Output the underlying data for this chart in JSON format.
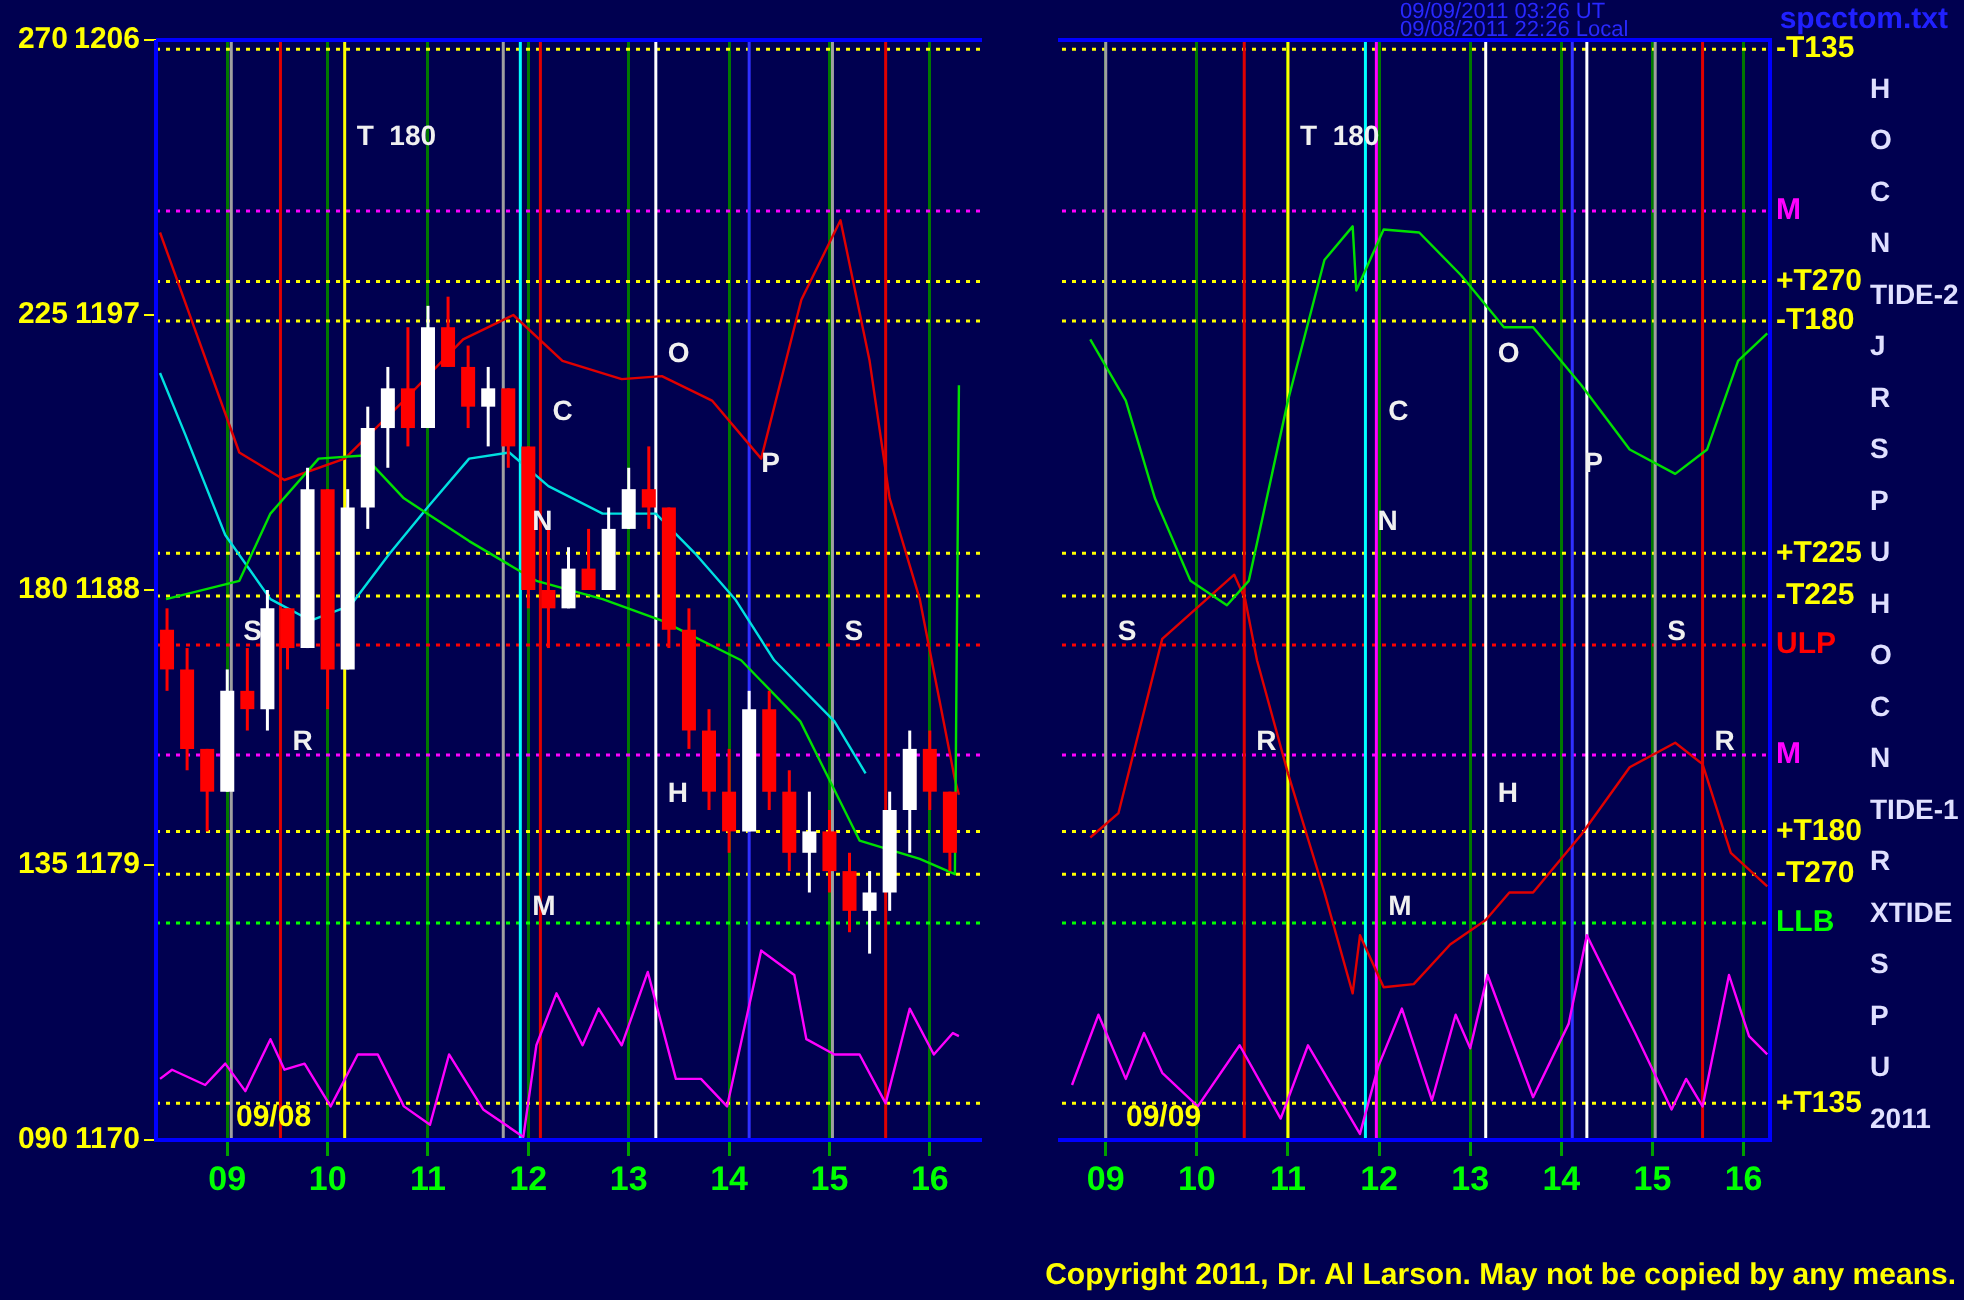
{
  "chart_data": [
    {
      "type": "candlestick",
      "x": [
        8.4,
        8.6,
        8.8,
        9.0,
        9.2,
        9.4,
        9.6,
        9.8,
        10.0,
        10.2,
        10.4,
        10.6,
        10.8,
        11.0,
        11.2,
        11.4,
        11.6,
        11.8,
        12.0,
        12.2,
        12.4,
        12.6,
        12.8,
        13.0,
        13.2,
        13.4,
        13.6,
        13.8,
        14.0,
        14.2,
        14.4,
        14.6,
        14.8,
        15.0,
        15.2,
        15.4,
        15.6,
        15.8,
        16.0,
        16.2
      ],
      "ohlc": [
        [
          1186.7,
          1187.4,
          1184.7,
          1185.4
        ],
        [
          1185.4,
          1186.1,
          1182.1,
          1182.8
        ],
        [
          1182.8,
          1182.8,
          1180.1,
          1181.4
        ],
        [
          1181.4,
          1185.4,
          1181.4,
          1184.7
        ],
        [
          1184.7,
          1186.1,
          1183.4,
          1184.1
        ],
        [
          1184.1,
          1188.0,
          1183.4,
          1187.4
        ],
        [
          1187.4,
          1187.4,
          1185.4,
          1186.1
        ],
        [
          1186.1,
          1192.0,
          1186.1,
          1191.3
        ],
        [
          1191.3,
          1191.3,
          1184.1,
          1185.4
        ],
        [
          1185.4,
          1191.3,
          1185.4,
          1190.7
        ],
        [
          1190.7,
          1194.0,
          1190.0,
          1193.3
        ],
        [
          1193.3,
          1195.3,
          1192.0,
          1194.6
        ],
        [
          1194.6,
          1196.6,
          1192.7,
          1193.3
        ],
        [
          1193.3,
          1197.3,
          1193.3,
          1196.6
        ],
        [
          1196.6,
          1197.6,
          1195.3,
          1195.3
        ],
        [
          1195.3,
          1196.0,
          1193.3,
          1194.0
        ],
        [
          1194.0,
          1195.3,
          1192.7,
          1194.6
        ],
        [
          1194.6,
          1194.6,
          1192.0,
          1192.7
        ],
        [
          1192.7,
          1192.7,
          1187.4,
          1188.0
        ],
        [
          1188.0,
          1190.0,
          1186.1,
          1187.4
        ],
        [
          1187.4,
          1189.4,
          1187.4,
          1188.7
        ],
        [
          1188.7,
          1190.0,
          1188.0,
          1188.0
        ],
        [
          1188.0,
          1190.7,
          1188.0,
          1190.0
        ],
        [
          1190.0,
          1192.0,
          1190.0,
          1191.3
        ],
        [
          1191.3,
          1192.7,
          1190.0,
          1190.7
        ],
        [
          1190.7,
          1190.7,
          1186.1,
          1186.7
        ],
        [
          1186.7,
          1187.4,
          1182.8,
          1183.4
        ],
        [
          1183.4,
          1184.1,
          1180.8,
          1181.4
        ],
        [
          1181.4,
          1182.8,
          1179.4,
          1180.1
        ],
        [
          1180.1,
          1184.7,
          1180.1,
          1184.1
        ],
        [
          1184.1,
          1184.7,
          1180.8,
          1181.4
        ],
        [
          1181.4,
          1182.1,
          1178.8,
          1179.4
        ],
        [
          1179.4,
          1181.4,
          1178.1,
          1180.1
        ],
        [
          1180.1,
          1180.8,
          1178.1,
          1178.8
        ],
        [
          1178.8,
          1179.4,
          1176.8,
          1177.5
        ],
        [
          1177.5,
          1178.8,
          1176.1,
          1178.1
        ],
        [
          1178.1,
          1181.4,
          1177.5,
          1180.8
        ],
        [
          1180.8,
          1183.4,
          1179.4,
          1182.8
        ],
        [
          1182.8,
          1183.4,
          1180.8,
          1181.4
        ],
        [
          1181.4,
          1181.4,
          1178.8,
          1179.4
        ]
      ],
      "series": [
        {
          "type": "line",
          "color": "#00e000",
          "x": [
            8.39,
            9.12,
            9.43,
            9.91,
            10.36,
            10.76,
            11.41,
            12.08,
            12.74,
            13.33,
            14.12,
            14.71,
            15.3,
            15.9,
            16.25,
            16.29
          ],
          "values": [
            1187.7,
            1188.3,
            1190.5,
            1192.3,
            1192.4,
            1191.0,
            1189.6,
            1188.3,
            1187.7,
            1187.0,
            1185.7,
            1183.7,
            1179.8,
            1179.2,
            1178.7,
            1194.7
          ]
        },
        {
          "type": "line",
          "color": "#e00000",
          "x": [
            8.33,
            9.12,
            9.57,
            10.17,
            10.76,
            11.35,
            11.85,
            12.34,
            12.93,
            13.33,
            13.83,
            14.32,
            14.72,
            15.11,
            15.4,
            15.6,
            15.9,
            16.25,
            16.29
          ],
          "values": [
            1199.7,
            1192.5,
            1191.6,
            1192.3,
            1194.2,
            1196.2,
            1197.0,
            1195.5,
            1194.9,
            1195.0,
            1194.2,
            1192.3,
            1197.5,
            1200.1,
            1195.5,
            1191.0,
            1187.7,
            1181.8,
            1181.3
          ]
        },
        {
          "type": "line",
          "color": "#ff00ff",
          "x": [
            8.33,
            8.45,
            8.78,
            8.98,
            9.18,
            9.43,
            9.57,
            9.77,
            10.03,
            10.3,
            10.5,
            10.76,
            11.02,
            11.21,
            11.55,
            11.95,
            12.08,
            12.28,
            12.54,
            12.7,
            12.93,
            13.19,
            13.47,
            13.72,
            13.98,
            14.32,
            14.65,
            14.77,
            15.05,
            15.3,
            15.56,
            15.8,
            16.04,
            16.23,
            16.29
          ],
          "values": [
            1172.0,
            1172.3,
            1171.8,
            1172.5,
            1171.6,
            1173.3,
            1172.3,
            1172.5,
            1171.1,
            1172.8,
            1172.8,
            1171.1,
            1170.5,
            1172.8,
            1171.0,
            1170.1,
            1173.1,
            1174.8,
            1173.1,
            1174.3,
            1173.1,
            1175.5,
            1172.0,
            1172.0,
            1171.1,
            1176.2,
            1175.4,
            1173.3,
            1172.8,
            1172.8,
            1171.2,
            1174.3,
            1172.8,
            1173.5,
            1173.4
          ]
        },
        {
          "type": "line",
          "color": "#00e0e0",
          "x": [
            8.33,
            8.58,
            8.98,
            9.43,
            9.83,
            10.23,
            10.62,
            11.02,
            11.41,
            11.81,
            12.2,
            12.74,
            13.27,
            13.66,
            14.06,
            14.45,
            15.05,
            15.36
          ],
          "values": [
            1195.1,
            1193.1,
            1189.8,
            1187.7,
            1187.0,
            1187.5,
            1189.2,
            1190.8,
            1192.3,
            1192.5,
            1191.4,
            1190.5,
            1190.5,
            1189.2,
            1187.7,
            1185.7,
            1183.7,
            1182.0
          ]
        }
      ],
      "marker": "none",
      "grid": "x",
      "xlim": [
        8.29,
        16.52
      ],
      "xticks": [
        {
          "value": 9,
          "label": "09"
        },
        {
          "value": 10,
          "label": "10"
        },
        {
          "value": 11,
          "label": "11"
        },
        {
          "value": 12,
          "label": "12"
        },
        {
          "value": 13,
          "label": "13"
        },
        {
          "value": 14,
          "label": "14"
        },
        {
          "value": 15,
          "label": "15"
        },
        {
          "value": 16,
          "label": "16"
        }
      ],
      "ylim": [
        1170,
        1206
      ],
      "yticks": [
        1170,
        1179,
        1188,
        1197,
        1206
      ],
      "y2lim": [
        90,
        270
      ],
      "y2ticks": [
        {
          "value": 90,
          "label": "090"
        },
        135,
        180,
        225,
        270
      ],
      "ref_lines": [
        {
          "axis": "y",
          "value": 1205.7,
          "color": "#ffff00",
          "line_style": "dotted"
        },
        {
          "axis": "y",
          "value": 1200.4,
          "color": "#ff00ff",
          "line_style": "dotted"
        },
        {
          "axis": "y",
          "value": 1198.1,
          "color": "#ffff00",
          "line_style": "dotted"
        },
        {
          "axis": "y",
          "value": 1196.8,
          "color": "#ffff00",
          "line_style": "dotted"
        },
        {
          "axis": "y",
          "value": 1189.2,
          "color": "#ffff00",
          "line_style": "dotted"
        },
        {
          "axis": "y",
          "value": 1187.8,
          "color": "#ffff00",
          "line_style": "dotted"
        },
        {
          "axis": "y",
          "value": 1186.2,
          "color": "#ff0000",
          "line_style": "dotted"
        },
        {
          "axis": "y",
          "value": 1182.6,
          "color": "#ff00ff",
          "line_style": "dotted"
        },
        {
          "axis": "y",
          "value": 1180.1,
          "color": "#ffff00",
          "line_style": "dotted"
        },
        {
          "axis": "y",
          "value": 1178.7,
          "color": "#ffff00",
          "line_style": "dotted"
        },
        {
          "axis": "y",
          "value": 1177.1,
          "color": "#00ff00",
          "line_style": "dotted"
        },
        {
          "axis": "y",
          "value": 1171.2,
          "color": "#ffff00",
          "line_style": "dotted"
        },
        {
          "axis": "x",
          "value": 9.53,
          "color": "#e00000"
        },
        {
          "axis": "x",
          "value": 12.12,
          "color": "#e00000"
        },
        {
          "axis": "x",
          "value": 15.56,
          "color": "#e00000"
        },
        {
          "axis": "x",
          "value": 10.17,
          "color": "#ffff00"
        },
        {
          "axis": "x",
          "value": 11.92,
          "color": "#00ffff"
        },
        {
          "axis": "x",
          "value": 13.27,
          "color": "#ffffff"
        },
        {
          "axis": "x",
          "value": 9.04,
          "color": "#a0a0a0"
        },
        {
          "axis": "x",
          "value": 11.75,
          "color": "#a0a0a0"
        },
        {
          "axis": "x",
          "value": 15.03,
          "color": "#a0a0a0"
        },
        {
          "axis": "x",
          "value": 14.2,
          "color": "#3030ff"
        }
      ],
      "annotations": [
        "09/08",
        {
          "text": "T  180",
          "x": 10.17,
          "y": 1202.8
        },
        {
          "text": "O",
          "x": 13.27,
          "y": 1195.7
        },
        {
          "text": "C",
          "x": 12.12,
          "y": 1193.8
        },
        {
          "text": "P",
          "x": 14.2,
          "y": 1192.1
        },
        {
          "text": "N",
          "x": 11.92,
          "y": 1190.2
        },
        {
          "text": "S",
          "x": 9.04,
          "y": 1186.6
        },
        {
          "text": "S",
          "x": 15.03,
          "y": 1186.6
        },
        {
          "text": "R",
          "x": 9.53,
          "y": 1183.0
        },
        {
          "text": "H",
          "x": 13.27,
          "y": 1181.3
        },
        {
          "text": "M",
          "x": 11.92,
          "y": 1177.6
        }
      ]
    },
    {
      "type": "line",
      "subtitle": "09/09/2011 03:26 UT\n09/08/2011 22:26 Local",
      "series": [
        {
          "color": "#00e000",
          "x": [
            8.83,
            9.22,
            9.54,
            9.93,
            10.33,
            10.57,
            11.0,
            11.4,
            11.71,
            11.75,
            12.05,
            12.44,
            12.9,
            13.37,
            13.69,
            14.22,
            14.75,
            15.25,
            15.6,
            15.94,
            16.26
          ],
          "values": [
            1196.2,
            1194.2,
            1191.0,
            1188.3,
            1187.5,
            1188.3,
            1194.2,
            1198.8,
            1199.9,
            1197.8,
            1199.8,
            1199.7,
            1198.3,
            1196.6,
            1196.6,
            1194.7,
            1192.6,
            1191.8,
            1192.6,
            1195.5,
            1196.4
          ]
        },
        {
          "color": "#e00000",
          "x": [
            8.83,
            9.14,
            9.62,
            10.41,
            10.53,
            10.66,
            11.0,
            11.4,
            11.71,
            11.79,
            12.05,
            12.38,
            12.78,
            13.17,
            13.43,
            13.69,
            14.22,
            14.75,
            15.25,
            15.55,
            15.86,
            16.26
          ],
          "values": [
            1179.9,
            1180.7,
            1186.4,
            1188.5,
            1187.7,
            1185.7,
            1182.0,
            1178.1,
            1174.8,
            1176.7,
            1175.0,
            1175.1,
            1176.4,
            1177.2,
            1178.1,
            1178.1,
            1180.0,
            1182.2,
            1183.0,
            1182.3,
            1179.4,
            1178.3
          ]
        },
        {
          "color": "#ff00ff",
          "x": [
            8.63,
            8.92,
            9.22,
            9.42,
            9.62,
            10.01,
            10.47,
            10.92,
            11.22,
            11.79,
            11.99,
            12.25,
            12.58,
            12.84,
            13.0,
            13.19,
            13.69,
            14.08,
            14.28,
            14.81,
            15.21,
            15.37,
            15.55,
            15.84,
            16.06,
            16.26
          ],
          "values": [
            1171.8,
            1174.1,
            1172.0,
            1173.5,
            1172.2,
            1171.1,
            1173.1,
            1170.7,
            1173.1,
            1170.2,
            1172.4,
            1174.3,
            1171.3,
            1174.1,
            1173.0,
            1175.4,
            1171.4,
            1173.8,
            1176.7,
            1173.5,
            1171.0,
            1172.0,
            1171.1,
            1175.4,
            1173.4,
            1172.8
          ]
        }
      ],
      "marker": "none",
      "grid": "x",
      "tick_labels": "x",
      "xlim": [
        8.52,
        16.29
      ],
      "xticks": [
        {
          "value": 9,
          "label": "09"
        },
        {
          "value": 10,
          "label": "10"
        },
        {
          "value": 11,
          "label": "11"
        },
        {
          "value": 12,
          "label": "12"
        },
        {
          "value": 13,
          "label": "13"
        },
        {
          "value": 14,
          "label": "14"
        },
        {
          "value": 15,
          "label": "15"
        },
        {
          "value": 16,
          "label": "16"
        }
      ],
      "ylim": [
        1170,
        1206
      ],
      "yticks": [
        1170,
        1179,
        1188,
        1197,
        1206
      ],
      "ref_lines": [
        {
          "axis": "y",
          "value": 1205.7,
          "label": "-T135",
          "color": "#ffff00",
          "line_style": "dotted"
        },
        {
          "axis": "y",
          "value": 1200.4,
          "label": "M",
          "color": "#ff00ff",
          "line_style": "dotted"
        },
        {
          "axis": "y",
          "value": 1198.1,
          "label": "+T270",
          "color": "#ffff00",
          "line_style": "dotted"
        },
        {
          "axis": "y",
          "value": 1196.8,
          "label": "-T180",
          "color": "#ffff00",
          "line_style": "dotted"
        },
        {
          "axis": "y",
          "value": 1189.2,
          "label": "+T225",
          "color": "#ffff00",
          "line_style": "dotted"
        },
        {
          "axis": "y",
          "value": 1187.8,
          "label": "-T225",
          "color": "#ffff00",
          "line_style": "dotted"
        },
        {
          "axis": "y",
          "value": 1186.2,
          "label": "ULP",
          "color": "#ff0000",
          "line_style": "dotted"
        },
        {
          "axis": "y",
          "value": 1182.6,
          "label": "M",
          "color": "#ff00ff",
          "line_style": "dotted"
        },
        {
          "axis": "y",
          "value": 1180.1,
          "label": "+T180",
          "color": "#ffff00",
          "line_style": "dotted"
        },
        {
          "axis": "y",
          "value": 1178.7,
          "label": "-T270",
          "color": "#ffff00",
          "line_style": "dotted"
        },
        {
          "axis": "y",
          "value": 1177.1,
          "label": "LLB",
          "color": "#00ff00",
          "line_style": "dotted"
        },
        {
          "axis": "y",
          "value": 1171.2,
          "label": "+T135",
          "color": "#ffff00",
          "line_style": "dotted"
        },
        {
          "axis": "x",
          "value": 10.52,
          "color": "#e00000"
        },
        {
          "axis": "x",
          "value": 15.55,
          "color": "#e00000"
        },
        {
          "axis": "x",
          "value": 11.0,
          "color": "#ffff00"
        },
        {
          "axis": "x",
          "value": 11.85,
          "color": "#00ffff"
        },
        {
          "axis": "x",
          "value": 11.97,
          "color": "#ff00ff"
        },
        {
          "axis": "x",
          "value": 13.17,
          "color": "#ffffff"
        },
        {
          "axis": "x",
          "value": 14.28,
          "color": "#ffffff"
        },
        {
          "axis": "x",
          "value": 9.0,
          "color": "#a0a0a0"
        },
        {
          "axis": "x",
          "value": 15.03,
          "color": "#a0a0a0"
        },
        {
          "axis": "x",
          "value": 14.12,
          "color": "#3030ff"
        }
      ],
      "annotations": [
        "09/09",
        "spcctom.txt",
        "Copyright 2011, Dr. Al Larson. May not be copied by any means.",
        "H",
        "O",
        "C",
        "N",
        "TIDE-2",
        "J",
        "R",
        "S",
        "P",
        "U",
        "H",
        "O",
        "C",
        "N",
        "TIDE-1",
        "R",
        "XTIDE",
        "S",
        "P",
        "U",
        "2011",
        {
          "text": "T  180",
          "x": 11.0,
          "y": 1202.8
        },
        {
          "text": "O",
          "x": 13.17,
          "y": 1195.7
        },
        {
          "text": "C",
          "x": 11.97,
          "y": 1193.8
        },
        {
          "text": "P",
          "x": 14.12,
          "y": 1192.1
        },
        {
          "text": "N",
          "x": 11.85,
          "y": 1190.2
        },
        {
          "text": "S",
          "x": 9.0,
          "y": 1186.6
        },
        {
          "text": "S",
          "x": 15.03,
          "y": 1186.6
        },
        {
          "text": "R",
          "x": 10.52,
          "y": 1183.0
        },
        {
          "text": "R",
          "x": 15.55,
          "y": 1183.0
        },
        {
          "text": "H",
          "x": 13.17,
          "y": 1181.3
        },
        {
          "text": "M",
          "x": 11.97,
          "y": 1177.6
        }
      ]
    }
  ]
}
